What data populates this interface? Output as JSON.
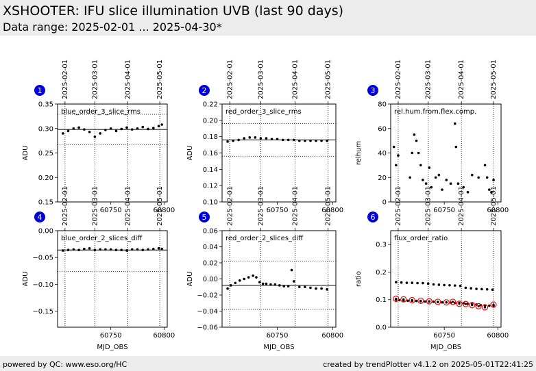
{
  "header": {
    "title": "XSHOOTER: IFU slice illumination UVB (last 90 days)",
    "subtitle": "Data range: 2025-02-01 ... 2025-04-30*"
  },
  "footer": {
    "left": "powered by QC: www.eso.org/HC",
    "right": "created by trendPlotter v4.1.2 on 2025-05-01T22:41:25"
  },
  "date_ticks": [
    {
      "mjd": 60707,
      "label": "2025-02-01"
    },
    {
      "mjd": 60735,
      "label": "2025-03-01"
    },
    {
      "mjd": 60766,
      "label": "2025-04-01"
    },
    {
      "mjd": 60796,
      "label": "2025-05-01"
    }
  ],
  "colors": {
    "marker": "#0000dd",
    "points": "#000000",
    "outlier": "#ff0000"
  },
  "chart_data": [
    {
      "type": "scatter",
      "number": "1",
      "label": "blue_order_3_slice_rms",
      "xlabel": "",
      "ylabel": "ADU",
      "xlim": [
        60700,
        60803
      ],
      "ylim": [
        0.15,
        0.35
      ],
      "yticks": [
        0.15,
        0.2,
        0.25,
        0.3,
        0.35
      ],
      "ytick_labels": [
        "0.15",
        "0.20",
        "0.25",
        "0.30",
        "0.35"
      ],
      "xticks": [
        60750,
        60800
      ],
      "xtick_labels": [
        "60750",
        "60800"
      ],
      "hline": 0.298,
      "dotted_hlines": [
        0.267,
        0.329
      ],
      "series": [
        {
          "x": [
            60705,
            60710,
            60715,
            60720,
            60725,
            60730,
            60735,
            60740,
            60745,
            60750,
            60755,
            60760,
            60765,
            60770,
            60775,
            60780,
            60785,
            60790,
            60795,
            60798
          ],
          "y": [
            0.29,
            0.295,
            0.3,
            0.302,
            0.298,
            0.293,
            0.283,
            0.29,
            0.297,
            0.3,
            0.295,
            0.299,
            0.302,
            0.298,
            0.3,
            0.303,
            0.299,
            0.301,
            0.305,
            0.308
          ]
        }
      ]
    },
    {
      "type": "scatter",
      "number": "2",
      "label": "red_order_3_slice_rms",
      "xlabel": "",
      "ylabel": "ADU",
      "xlim": [
        60700,
        60803
      ],
      "ylim": [
        0.1,
        0.22
      ],
      "yticks": [
        0.1,
        0.12,
        0.14,
        0.16,
        0.18,
        0.2,
        0.22
      ],
      "ytick_labels": [
        "0.10",
        "0.12",
        "0.14",
        "0.16",
        "0.18",
        "0.20",
        "0.22"
      ],
      "xticks": [
        60750,
        60800
      ],
      "xtick_labels": [
        "60750",
        "60800"
      ],
      "hline": 0.176,
      "dotted_hlines": [
        0.156,
        0.196
      ],
      "series": [
        {
          "x": [
            60705,
            60710,
            60715,
            60720,
            60725,
            60730,
            60735,
            60740,
            60745,
            60750,
            60755,
            60760,
            60765,
            60770,
            60775,
            60780,
            60785,
            60790,
            60795
          ],
          "y": [
            0.174,
            0.175,
            0.176,
            0.178,
            0.179,
            0.179,
            0.178,
            0.178,
            0.177,
            0.177,
            0.176,
            0.176,
            0.176,
            0.175,
            0.175,
            0.175,
            0.175,
            0.175,
            0.175
          ]
        }
      ]
    },
    {
      "type": "scatter",
      "number": "3",
      "label": "rel.hum.from.flex.comp.",
      "xlabel": "",
      "ylabel": "relhum",
      "xlim": [
        60700,
        60803
      ],
      "ylim": [
        0,
        80
      ],
      "yticks": [
        0,
        20,
        40,
        60,
        80
      ],
      "ytick_labels": [
        "0",
        "20",
        "40",
        "60",
        "80"
      ],
      "xticks": [
        60750,
        60800
      ],
      "xtick_labels": [
        "60750",
        "60800"
      ],
      "hline": null,
      "dotted_hlines": [],
      "series": [
        {
          "x": [
            60703,
            60705,
            60707,
            60718,
            60720,
            60722,
            60724,
            60726,
            60728,
            60730,
            60733,
            60736,
            60738,
            60742,
            60745,
            60748,
            60752,
            60756,
            60760,
            60761,
            60763,
            60768,
            60772,
            60776,
            60782,
            60788,
            60790,
            60792,
            60794,
            60796
          ],
          "y": [
            45,
            30,
            38,
            20,
            40,
            55,
            50,
            40,
            30,
            18,
            15,
            28,
            12,
            20,
            22,
            10,
            18,
            15,
            64,
            45,
            15,
            12,
            8,
            22,
            20,
            30,
            20,
            10,
            8,
            18
          ]
        }
      ]
    },
    {
      "type": "scatter",
      "number": "4",
      "label": "blue_order_2_slices_diff",
      "xlabel": "MJD_OBS",
      "ylabel": "ADU",
      "xlim": [
        60700,
        60803
      ],
      "ylim": [
        -0.18,
        0.0
      ],
      "yticks": [
        -0.15,
        -0.1,
        -0.05,
        0.0
      ],
      "ytick_labels": [
        "−0.15",
        "−0.10",
        "−0.05",
        "0.00"
      ],
      "xticks": [
        60750,
        60800
      ],
      "xtick_labels": [
        "60750",
        "60800"
      ],
      "hline": -0.036,
      "dotted_hlines": [
        -0.076,
        0.004
      ],
      "series": [
        {
          "x": [
            60705,
            60710,
            60715,
            60720,
            60725,
            60730,
            60735,
            60740,
            60745,
            60750,
            60755,
            60760,
            60765,
            60770,
            60775,
            60780,
            60785,
            60790,
            60795,
            60798
          ],
          "y": [
            -0.037,
            -0.036,
            -0.035,
            -0.036,
            -0.034,
            -0.033,
            -0.036,
            -0.035,
            -0.035,
            -0.035,
            -0.036,
            -0.036,
            -0.037,
            -0.035,
            -0.035,
            -0.036,
            -0.035,
            -0.034,
            -0.033,
            -0.034
          ]
        }
      ]
    },
    {
      "type": "scatter",
      "number": "5",
      "label": "red_order_2_slices_diff",
      "xlabel": "MJD_OBS",
      "ylabel": "ADU",
      "xlim": [
        60700,
        60803
      ],
      "ylim": [
        -0.06,
        0.06
      ],
      "yticks": [
        -0.06,
        -0.04,
        -0.02,
        0.0,
        0.02,
        0.04,
        0.06
      ],
      "ytick_labels": [
        "−0.06",
        "−0.04",
        "−0.02",
        "0.00",
        "0.02",
        "0.04",
        "0.06"
      ],
      "xticks": [
        60750,
        60800
      ],
      "xtick_labels": [
        "60750",
        "60800"
      ],
      "hline": -0.008,
      "dotted_hlines": [
        -0.038,
        0.022
      ],
      "series": [
        {
          "x": [
            60705,
            60708,
            60712,
            60716,
            60720,
            60724,
            60728,
            60731,
            60734,
            60737,
            60740,
            60744,
            60748,
            60752,
            60756,
            60760,
            60763,
            60765,
            60770,
            60775,
            60780,
            60785,
            60790,
            60795
          ],
          "y": [
            -0.012,
            -0.008,
            -0.005,
            -0.002,
            0.0,
            0.002,
            0.004,
            0.002,
            -0.004,
            -0.006,
            -0.006,
            -0.007,
            -0.007,
            -0.008,
            -0.009,
            -0.009,
            0.011,
            -0.003,
            -0.01,
            -0.01,
            -0.011,
            -0.012,
            -0.012,
            -0.013
          ]
        }
      ]
    },
    {
      "type": "scatter",
      "number": "6",
      "label": "flux_order_ratio",
      "xlabel": "MJD_OBS",
      "ylabel": "ratio",
      "xlim": [
        60700,
        60803
      ],
      "ylim": [
        0.0,
        0.35
      ],
      "yticks": [
        0.0,
        0.1,
        0.2,
        0.3
      ],
      "ytick_labels": [
        "0.0",
        "0.1",
        "0.2",
        "0.3"
      ],
      "xticks": [
        60750,
        60800
      ],
      "xtick_labels": [
        "60750",
        "60800"
      ],
      "hline": null,
      "dotted_hlines": [],
      "series": [
        {
          "x": [
            60705,
            60710,
            60715,
            60720,
            60725,
            60730,
            60735,
            60740,
            60745,
            60750,
            60755,
            60760,
            60765,
            60770,
            60775,
            60780,
            60785,
            60790,
            60795
          ],
          "y": [
            0.163,
            0.162,
            0.161,
            0.161,
            0.16,
            0.16,
            0.158,
            0.155,
            0.154,
            0.153,
            0.152,
            0.151,
            0.15,
            0.143,
            0.141,
            0.139,
            0.138,
            0.137,
            0.136
          ]
        },
        {
          "x": [
            60705,
            60708,
            60712,
            60716,
            60720,
            60724,
            60728,
            60732,
            60736,
            60740,
            60744,
            60748,
            60752,
            60756,
            60760,
            60764,
            60768,
            60772,
            60776,
            60780,
            60784,
            60788,
            60792,
            60796
          ],
          "y": [
            0.1,
            0.098,
            0.097,
            0.096,
            0.096,
            0.095,
            0.094,
            0.093,
            0.093,
            0.092,
            0.091,
            0.09,
            0.09,
            0.089,
            0.088,
            0.088,
            0.087,
            0.085,
            0.084,
            0.082,
            0.08,
            0.079,
            0.078,
            0.078
          ]
        },
        {
          "x": [
            60705,
            60712,
            60720,
            60728,
            60736,
            60744,
            60752,
            60758,
            60764,
            60770,
            60776,
            60782,
            60788,
            60796
          ],
          "y": [
            0.103,
            0.101,
            0.098,
            0.096,
            0.094,
            0.092,
            0.09,
            0.092,
            0.085,
            0.084,
            0.08,
            0.076,
            0.072,
            0.082
          ],
          "marker": "ring"
        }
      ]
    }
  ]
}
